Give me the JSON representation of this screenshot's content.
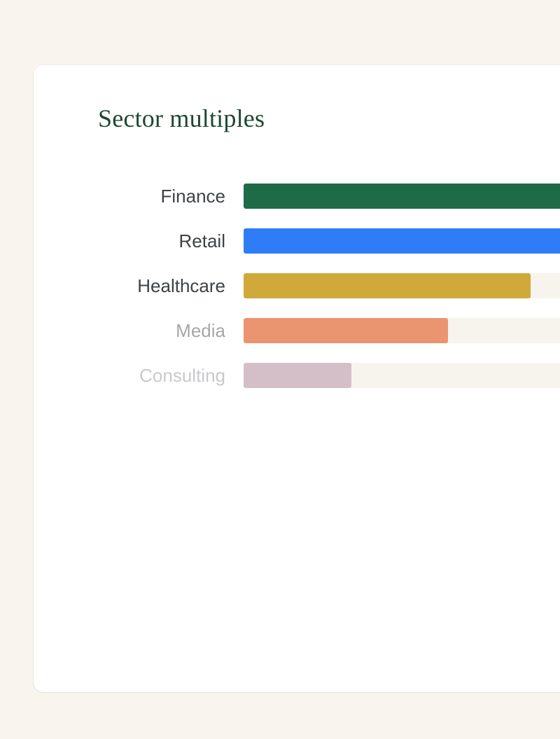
{
  "page": {
    "background": "#f9f5ee"
  },
  "card": {
    "title": "Sector multiples",
    "title_color": "#1d4732",
    "background": "#ffffff"
  },
  "chart_data": {
    "type": "bar",
    "orientation": "horizontal",
    "title": "Sector multiples",
    "categories": [
      "Finance",
      "Retail",
      "Healthcare",
      "Media",
      "Consulting"
    ],
    "values": [
      100,
      100,
      80,
      57,
      30
    ],
    "values_unit": "percent of chart track width (no numeric axis or value labels shown)",
    "clipped_at_right_edge": [
      true,
      true,
      false,
      false,
      false
    ],
    "bar_colors": [
      "#1f6b48",
      "#2e7df6",
      "#cfa93a",
      "#ea9470",
      "#d4bfc9"
    ],
    "label_colors": [
      "#3e4245",
      "#3e4245",
      "#3e4245",
      "#a7a7aa",
      "#c9c9cc"
    ],
    "track_color": "#f7f4ee",
    "grid": false,
    "legend": "none"
  }
}
